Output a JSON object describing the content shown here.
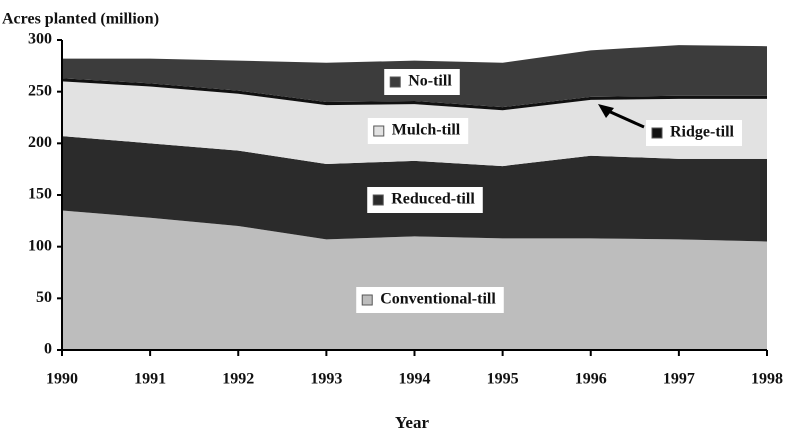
{
  "chart_data": {
    "type": "stacked_area",
    "title": "Acres planted (million)",
    "xlabel": "Year",
    "x": [
      1990,
      1991,
      1992,
      1993,
      1994,
      1995,
      1996,
      1997,
      1998
    ],
    "xlim": [
      1990,
      1998
    ],
    "xticks": [
      1990,
      1991,
      1992,
      1993,
      1994,
      1995,
      1996,
      1997,
      1998
    ],
    "ylim": [
      0,
      300
    ],
    "yticks": [
      0,
      50,
      100,
      150,
      200,
      250,
      300
    ],
    "series": [
      {
        "name": "Conventional-till",
        "color": "#bdbdbd",
        "values": [
          135,
          128,
          120,
          107,
          110,
          108,
          108,
          107,
          105
        ]
      },
      {
        "name": "Reduced-till",
        "color": "#2b2b2b",
        "values": [
          72,
          72,
          73,
          73,
          73,
          70,
          80,
          78,
          80
        ]
      },
      {
        "name": "Mulch-till",
        "color": "#e2e2e2",
        "values": [
          53,
          55,
          55,
          57,
          55,
          54,
          54,
          58,
          58
        ]
      },
      {
        "name": "Ridge-till",
        "color": "#111111",
        "values": [
          3,
          3,
          3,
          3,
          3,
          3,
          3,
          3,
          3
        ]
      },
      {
        "name": "No-till",
        "color": "#3c3c3c",
        "values": [
          19,
          24,
          29,
          38,
          39,
          43,
          45,
          49,
          48
        ]
      }
    ]
  }
}
